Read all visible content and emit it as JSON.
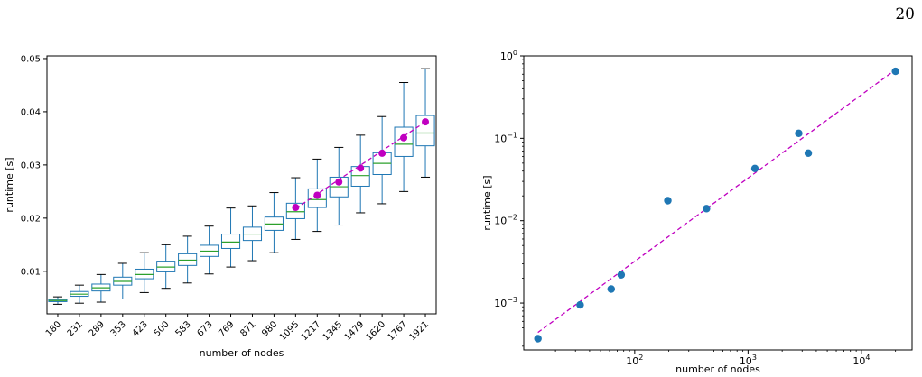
{
  "page": {
    "number": "20"
  },
  "chart_data": [
    {
      "type": "box",
      "xlabel": "number of nodes",
      "ylabel": "runtime [s]",
      "ylim": [
        0.002,
        0.0505
      ],
      "yticks": [
        0.01,
        0.02,
        0.03,
        0.04,
        0.05
      ],
      "ytick_labels": [
        "0.01",
        "0.02",
        "0.03",
        "0.04",
        "0.05"
      ],
      "categories": [
        "180",
        "231",
        "289",
        "353",
        "423",
        "500",
        "583",
        "673",
        "769",
        "871",
        "980",
        "1095",
        "1217",
        "1345",
        "1479",
        "1620",
        "1767",
        "1921"
      ],
      "boxes": [
        {
          "whislo": 0.0038,
          "q1": 0.0043,
          "med": 0.0045,
          "q3": 0.0047,
          "whishi": 0.0052
        },
        {
          "whislo": 0.004,
          "q1": 0.0053,
          "med": 0.0057,
          "q3": 0.0062,
          "whishi": 0.0074
        },
        {
          "whislo": 0.0042,
          "q1": 0.0063,
          "med": 0.0069,
          "q3": 0.0076,
          "whishi": 0.0094
        },
        {
          "whislo": 0.0048,
          "q1": 0.0074,
          "med": 0.0081,
          "q3": 0.0089,
          "whishi": 0.0115
        },
        {
          "whislo": 0.006,
          "q1": 0.0086,
          "med": 0.0094,
          "q3": 0.0104,
          "whishi": 0.0135
        },
        {
          "whislo": 0.0068,
          "q1": 0.0099,
          "med": 0.0108,
          "q3": 0.0119,
          "whishi": 0.015
        },
        {
          "whislo": 0.0078,
          "q1": 0.0111,
          "med": 0.0121,
          "q3": 0.0133,
          "whishi": 0.0166
        },
        {
          "whislo": 0.0095,
          "q1": 0.0128,
          "med": 0.0138,
          "q3": 0.0149,
          "whishi": 0.0185
        },
        {
          "whislo": 0.0108,
          "q1": 0.0143,
          "med": 0.0155,
          "q3": 0.017,
          "whishi": 0.0219
        },
        {
          "whislo": 0.012,
          "q1": 0.0158,
          "med": 0.017,
          "q3": 0.0183,
          "whishi": 0.0223
        },
        {
          "whislo": 0.0135,
          "q1": 0.0177,
          "med": 0.0189,
          "q3": 0.0202,
          "whishi": 0.0248
        },
        {
          "whislo": 0.016,
          "q1": 0.0199,
          "med": 0.0212,
          "q3": 0.0228,
          "whishi": 0.0276
        },
        {
          "whislo": 0.0175,
          "q1": 0.022,
          "med": 0.0235,
          "q3": 0.0255,
          "whishi": 0.0311
        },
        {
          "whislo": 0.0187,
          "q1": 0.024,
          "med": 0.0259,
          "q3": 0.0277,
          "whishi": 0.0333
        },
        {
          "whislo": 0.021,
          "q1": 0.026,
          "med": 0.028,
          "q3": 0.0297,
          "whishi": 0.0356
        },
        {
          "whislo": 0.0227,
          "q1": 0.0282,
          "med": 0.0303,
          "q3": 0.0323,
          "whishi": 0.0391
        },
        {
          "whislo": 0.025,
          "q1": 0.0316,
          "med": 0.0339,
          "q3": 0.0371,
          "whishi": 0.0455
        },
        {
          "whislo": 0.0277,
          "q1": 0.0336,
          "med": 0.036,
          "q3": 0.0393,
          "whishi": 0.0481
        }
      ],
      "points": {
        "categories": [
          "1095",
          "1217",
          "1345",
          "1479",
          "1620",
          "1767",
          "1921"
        ],
        "values": [
          0.022,
          0.0243,
          0.0268,
          0.0294,
          0.0322,
          0.0351,
          0.0381
        ]
      },
      "fit_line": {
        "x_from": "1095",
        "x_to": "1921",
        "y": [
          0.0218,
          0.0381
        ],
        "style": "dashed"
      },
      "colors": {
        "box": "#1f77b4",
        "median": "#2ca02c",
        "points": "#c000c0",
        "fit": "#c000c0"
      }
    },
    {
      "type": "scatter",
      "xlabel": "number of nodes",
      "ylabel": "runtime [s]",
      "xscale": "log",
      "yscale": "log",
      "xlim": [
        10.5,
        28000
      ],
      "ylim": [
        0.00027,
        1.0
      ],
      "xticks": [
        100,
        1000,
        10000
      ],
      "xtick_labels": [
        {
          "base": "10",
          "exp": "2"
        },
        {
          "base": "10",
          "exp": "3"
        },
        {
          "base": "10",
          "exp": "4"
        }
      ],
      "yticks": [
        0.001,
        0.01,
        0.1,
        1
      ],
      "ytick_labels": [
        {
          "base": "10",
          "exp": "−3"
        },
        {
          "base": "10",
          "exp": "−2"
        },
        {
          "base": "10",
          "exp": "−1"
        },
        {
          "base": "10",
          "exp": "0"
        }
      ],
      "x": [
        14,
        33,
        62,
        76,
        196,
        430,
        1150,
        2800,
        3400,
        20000
      ],
      "y": [
        0.00037,
        0.00095,
        0.00148,
        0.0022,
        0.0175,
        0.014,
        0.043,
        0.115,
        0.066,
        0.65
      ],
      "fit_line": {
        "x": [
          14,
          20000
        ],
        "y": [
          0.00044,
          0.68
        ],
        "style": "dashed"
      },
      "colors": {
        "points": "#1f77b4",
        "fit": "#c000c0"
      }
    }
  ]
}
